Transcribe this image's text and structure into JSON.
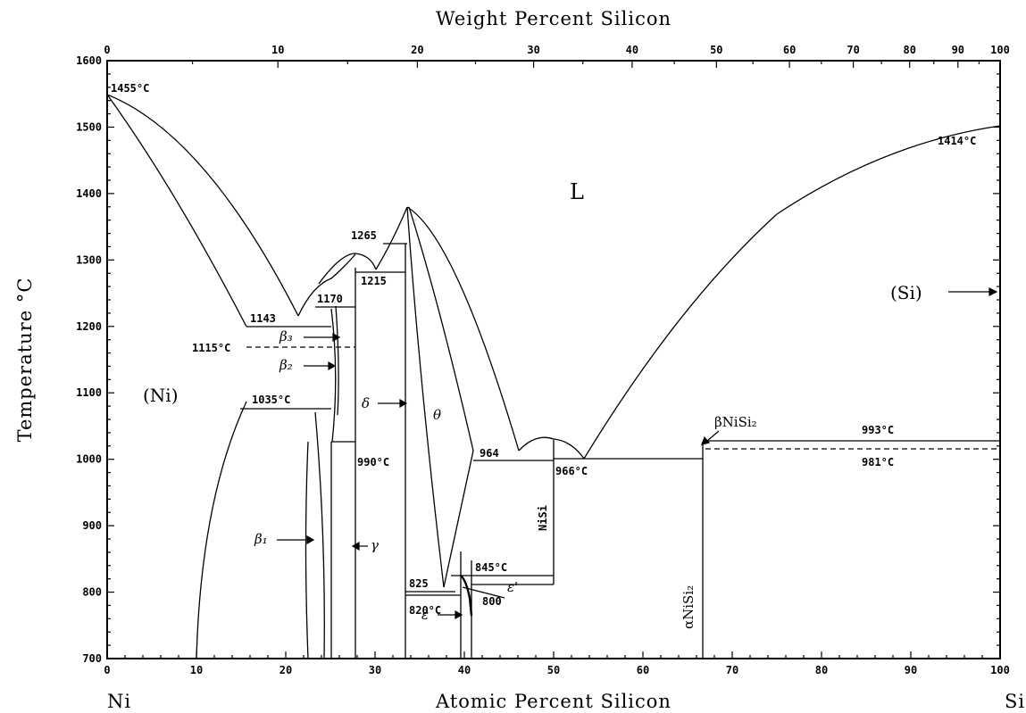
{
  "figure": {
    "top_axis_title": "Weight Percent Silicon",
    "bottom_axis_title": "Atomic Percent Silicon",
    "y_axis_title": "Temperature °C",
    "left_element": "Ni",
    "right_element": "Si"
  },
  "axes": {
    "x_ticks": [
      "0",
      "10",
      "20",
      "30",
      "40",
      "50",
      "60",
      "70",
      "80",
      "90",
      "100"
    ],
    "y_ticks": [
      "700",
      "800",
      "900",
      "1000",
      "1100",
      "1200",
      "1300",
      "1400",
      "1500",
      "1600"
    ],
    "top_ticks": [
      {
        "at": 0,
        "label": "0"
      },
      {
        "at": 19.12,
        "label": "10"
      },
      {
        "at": 34.74,
        "label": "20"
      },
      {
        "at": 47.76,
        "label": "30"
      },
      {
        "at": 58.79,
        "label": "40"
      },
      {
        "at": 68.23,
        "label": "50"
      },
      {
        "at": 76.41,
        "label": "60"
      },
      {
        "at": 83.56,
        "label": "70"
      },
      {
        "at": 89.87,
        "label": "80"
      },
      {
        "at": 95.28,
        "label": "90"
      },
      {
        "at": 100,
        "label": "100"
      }
    ]
  },
  "phases": {
    "liquid": "L",
    "ni": "(Ni)",
    "si": "(Si)",
    "beta1": "β₁",
    "beta2": "β₂",
    "beta3": "β₃",
    "gamma": "γ",
    "delta": "δ",
    "theta": "θ",
    "epsilon": "ε",
    "epsilon_prime": "ε'",
    "nisi": "NiSi",
    "alpha_nisi2": "αNiSi₂",
    "beta_nisi2": "βNiSi₂"
  },
  "temperatures": {
    "t1455": "1455°C",
    "t1414": "1414°C",
    "t1143": "1143",
    "t1115": "1115°C",
    "t1035": "1035°C",
    "t1170": "1170",
    "t1265": "1265",
    "t1215": "1215",
    "t990": "990°C",
    "t964": "964",
    "t966": "966°C",
    "t993": "993°C",
    "t981": "981°C",
    "t845": "845°C",
    "t825": "825",
    "t820": "820°C",
    "t800": "800"
  }
}
